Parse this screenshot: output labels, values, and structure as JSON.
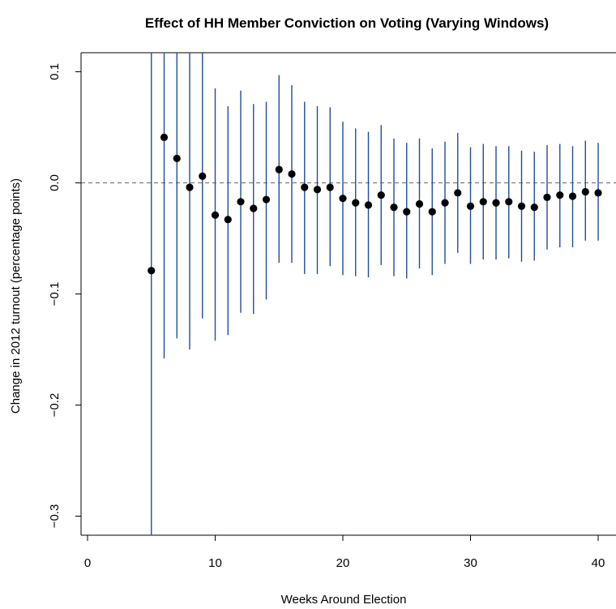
{
  "chart_data": {
    "type": "scatter",
    "title": "Effect of HH Member Conviction on Voting (Varying Windows)",
    "xlabel": "Weeks Around Election",
    "ylabel": "Change in 2012 turnout (percentage points)",
    "xlim": [
      0,
      40
    ],
    "ylim": [
      -0.3,
      0.1
    ],
    "x_ticks": [
      0,
      10,
      20,
      30,
      40
    ],
    "y_ticks": [
      -0.3,
      -0.2,
      -0.1,
      0.0,
      0.1
    ],
    "x_tick_labels": [
      "0",
      "10",
      "20",
      "30",
      "40"
    ],
    "y_tick_labels": [
      "−0.3",
      "−0.2",
      "−0.1",
      "0.0",
      "0.1"
    ],
    "reference_line": {
      "y": 0,
      "style": "dashed"
    },
    "grid": false,
    "colors": {
      "point": "#000000",
      "error_bar": "#1f4e9c",
      "reference": "#666666"
    },
    "series": [
      {
        "x": [
          5,
          6,
          7,
          8,
          9,
          10,
          11,
          12,
          13,
          14,
          15,
          16,
          17,
          18,
          19,
          20,
          21,
          22,
          23,
          24,
          25,
          26,
          27,
          28,
          29,
          30,
          31,
          32,
          33,
          34,
          35,
          36,
          37,
          38,
          39,
          40
        ],
        "y": [
          -0.079,
          0.041,
          0.022,
          -0.004,
          0.006,
          -0.029,
          -0.033,
          -0.017,
          -0.023,
          -0.015,
          0.012,
          0.008,
          -0.004,
          -0.006,
          -0.004,
          -0.014,
          -0.018,
          -0.02,
          -0.011,
          -0.022,
          -0.026,
          -0.019,
          -0.026,
          -0.018,
          -0.009,
          -0.021,
          -0.017,
          -0.018,
          -0.017,
          -0.021,
          -0.022,
          -0.013,
          -0.011,
          -0.012,
          -0.008,
          -0.009
        ],
        "lower": [
          -0.32,
          -0.158,
          -0.14,
          -0.15,
          -0.122,
          -0.142,
          -0.137,
          -0.117,
          -0.118,
          -0.105,
          -0.072,
          -0.072,
          -0.082,
          -0.082,
          -0.075,
          -0.083,
          -0.084,
          -0.085,
          -0.074,
          -0.084,
          -0.086,
          -0.077,
          -0.083,
          -0.073,
          -0.063,
          -0.073,
          -0.069,
          -0.069,
          -0.068,
          -0.071,
          -0.07,
          -0.06,
          -0.058,
          -0.058,
          -0.052,
          -0.052
        ],
        "upper": [
          0.2,
          0.2,
          0.2,
          0.2,
          0.2,
          0.085,
          0.069,
          0.083,
          0.071,
          0.073,
          0.097,
          0.088,
          0.073,
          0.069,
          0.068,
          0.055,
          0.049,
          0.046,
          0.052,
          0.04,
          0.036,
          0.04,
          0.031,
          0.037,
          0.045,
          0.032,
          0.035,
          0.033,
          0.033,
          0.029,
          0.028,
          0.034,
          0.035,
          0.033,
          0.038,
          0.036
        ]
      }
    ]
  }
}
